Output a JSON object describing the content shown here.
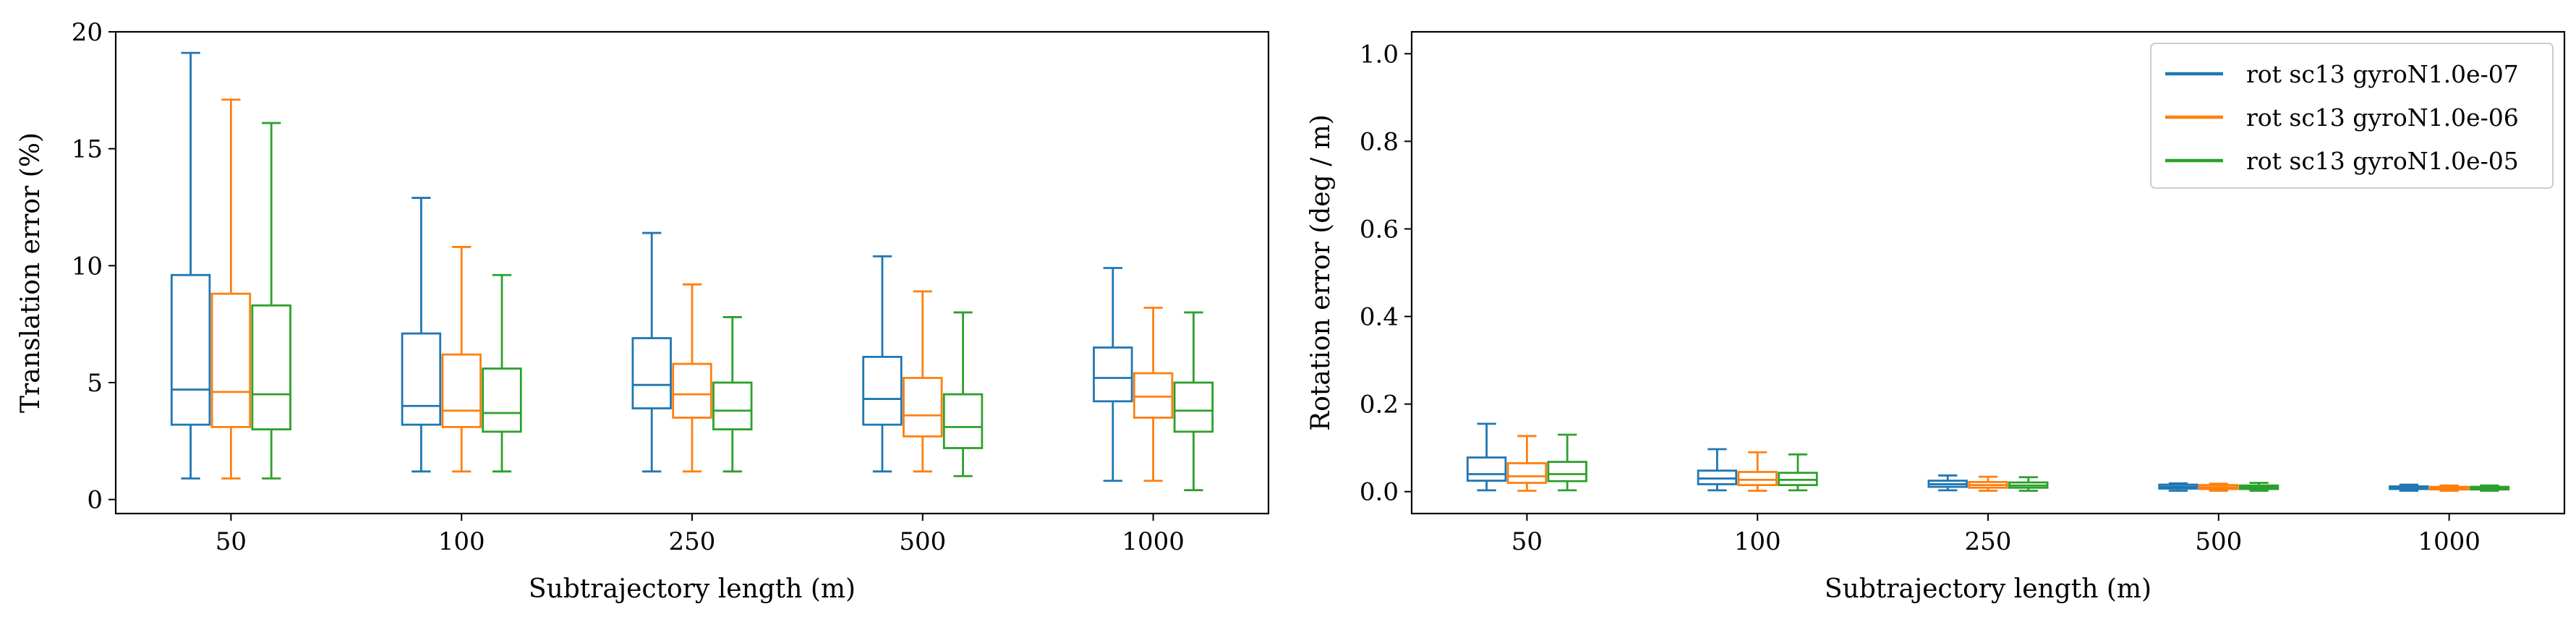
{
  "colors": {
    "series_1": "#1f77b4",
    "series_2": "#ff7f0e",
    "series_3": "#2ca02c",
    "axes": "#000000",
    "background": "#ffffff"
  },
  "chart_data": [
    {
      "type": "box",
      "title": "",
      "xlabel": "Subtrajectory length (m)",
      "ylabel": "Translation error (%)",
      "ylim": [
        -0.6,
        20
      ],
      "yticks": [
        0,
        5,
        10,
        15,
        20
      ],
      "categories": [
        "50",
        "100",
        "250",
        "500",
        "1000"
      ],
      "grid": false,
      "legend": null,
      "series": [
        {
          "name": "rot sc13 gyroN1.0e-07",
          "color": "#1f77b4",
          "boxes": [
            {
              "min": 0.9,
              "q1": 3.2,
              "median": 4.7,
              "q3": 9.6,
              "max": 19.1
            },
            {
              "min": 1.2,
              "q1": 3.2,
              "median": 4.0,
              "q3": 7.1,
              "max": 12.9
            },
            {
              "min": 1.2,
              "q1": 3.9,
              "median": 4.9,
              "q3": 6.9,
              "max": 11.4
            },
            {
              "min": 1.2,
              "q1": 3.2,
              "median": 4.3,
              "q3": 6.1,
              "max": 10.4
            },
            {
              "min": 0.8,
              "q1": 4.2,
              "median": 5.2,
              "q3": 6.5,
              "max": 9.9
            }
          ]
        },
        {
          "name": "rot sc13 gyroN1.0e-06",
          "color": "#ff7f0e",
          "boxes": [
            {
              "min": 0.9,
              "q1": 3.1,
              "median": 4.6,
              "q3": 8.8,
              "max": 17.1
            },
            {
              "min": 1.2,
              "q1": 3.1,
              "median": 3.8,
              "q3": 6.2,
              "max": 10.8
            },
            {
              "min": 1.2,
              "q1": 3.5,
              "median": 4.5,
              "q3": 5.8,
              "max": 9.2
            },
            {
              "min": 1.2,
              "q1": 2.7,
              "median": 3.6,
              "q3": 5.2,
              "max": 8.9
            },
            {
              "min": 0.8,
              "q1": 3.5,
              "median": 4.4,
              "q3": 5.4,
              "max": 8.2
            }
          ]
        },
        {
          "name": "rot sc13 gyroN1.0e-05",
          "color": "#2ca02c",
          "boxes": [
            {
              "min": 0.9,
              "q1": 3.0,
              "median": 4.5,
              "q3": 8.3,
              "max": 16.1
            },
            {
              "min": 1.2,
              "q1": 2.9,
              "median": 3.7,
              "q3": 5.6,
              "max": 9.6
            },
            {
              "min": 1.2,
              "q1": 3.0,
              "median": 3.8,
              "q3": 5.0,
              "max": 7.8
            },
            {
              "min": 1.0,
              "q1": 2.2,
              "median": 3.1,
              "q3": 4.5,
              "max": 8.0
            },
            {
              "min": 0.4,
              "q1": 2.9,
              "median": 3.8,
              "q3": 5.0,
              "max": 8.0
            }
          ]
        }
      ]
    },
    {
      "type": "box",
      "title": "",
      "xlabel": "Subtrajectory length (m)",
      "ylabel": "Rotation error (deg / m)",
      "ylim": [
        -0.05,
        1.05
      ],
      "yticks": [
        "0.0",
        "0.2",
        "0.4",
        "0.6",
        "0.8",
        "1.0"
      ],
      "categories": [
        "50",
        "100",
        "250",
        "500",
        "1000"
      ],
      "grid": false,
      "legend": "top-right",
      "series": [
        {
          "name": "rot sc13 gyroN1.0e-07",
          "color": "#1f77b4",
          "boxes": [
            {
              "min": 0.003,
              "q1": 0.025,
              "median": 0.04,
              "q3": 0.078,
              "max": 0.155
            },
            {
              "min": 0.003,
              "q1": 0.017,
              "median": 0.03,
              "q3": 0.048,
              "max": 0.097
            },
            {
              "min": 0.003,
              "q1": 0.011,
              "median": 0.017,
              "q3": 0.025,
              "max": 0.037
            },
            {
              "min": 0.002,
              "q1": 0.007,
              "median": 0.011,
              "q3": 0.016,
              "max": 0.019
            },
            {
              "min": 0.002,
              "q1": 0.006,
              "median": 0.009,
              "q3": 0.012,
              "max": 0.016
            }
          ]
        },
        {
          "name": "rot sc13 gyroN1.0e-06",
          "color": "#ff7f0e",
          "boxes": [
            {
              "min": 0.002,
              "q1": 0.02,
              "median": 0.035,
              "q3": 0.065,
              "max": 0.127
            },
            {
              "min": 0.002,
              "q1": 0.015,
              "median": 0.027,
              "q3": 0.045,
              "max": 0.09
            },
            {
              "min": 0.002,
              "q1": 0.009,
              "median": 0.015,
              "q3": 0.022,
              "max": 0.034
            },
            {
              "min": 0.002,
              "q1": 0.006,
              "median": 0.01,
              "q3": 0.015,
              "max": 0.018
            },
            {
              "min": 0.002,
              "q1": 0.005,
              "median": 0.008,
              "q3": 0.011,
              "max": 0.014
            }
          ]
        },
        {
          "name": "rot sc13 gyroN1.0e-05",
          "color": "#2ca02c",
          "boxes": [
            {
              "min": 0.003,
              "q1": 0.024,
              "median": 0.04,
              "q3": 0.068,
              "max": 0.13
            },
            {
              "min": 0.003,
              "q1": 0.015,
              "median": 0.027,
              "q3": 0.043,
              "max": 0.085
            },
            {
              "min": 0.002,
              "q1": 0.009,
              "median": 0.014,
              "q3": 0.021,
              "max": 0.033
            },
            {
              "min": 0.002,
              "q1": 0.006,
              "median": 0.01,
              "q3": 0.014,
              "max": 0.02
            },
            {
              "min": 0.002,
              "q1": 0.005,
              "median": 0.008,
              "q3": 0.011,
              "max": 0.014
            }
          ]
        }
      ]
    }
  ]
}
